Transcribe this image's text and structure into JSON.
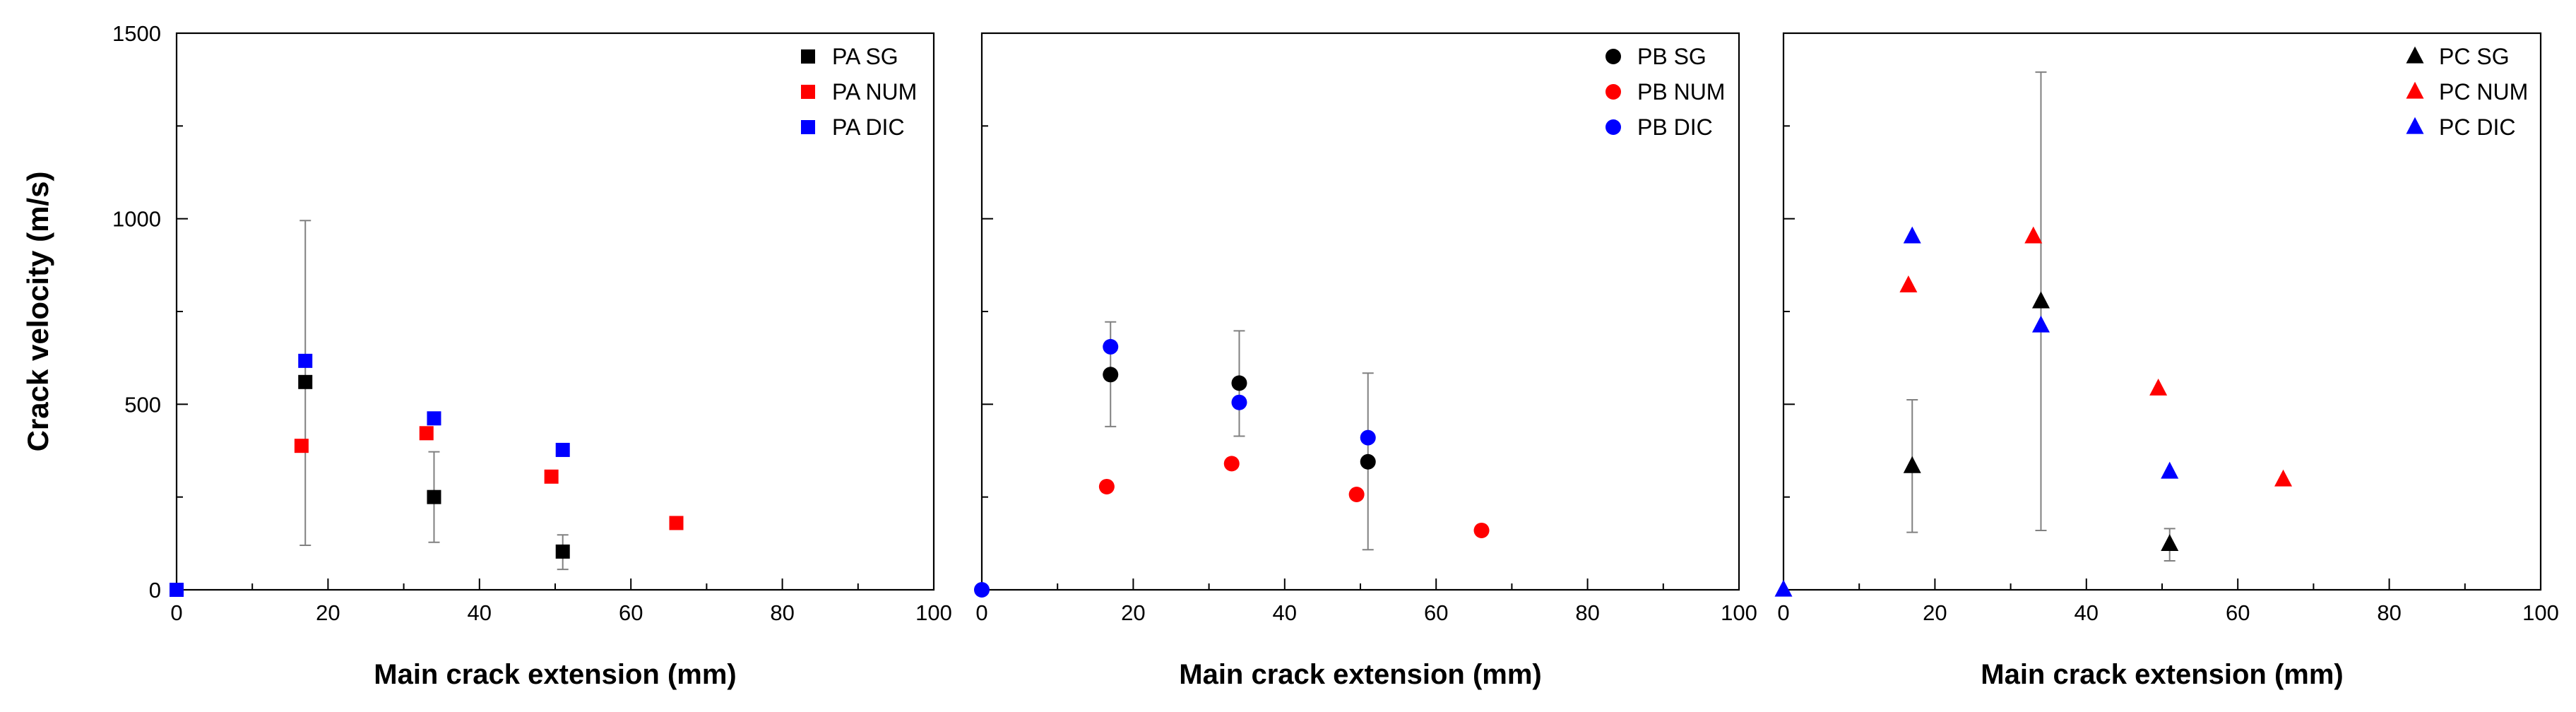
{
  "chart_data": [
    {
      "type": "scatter",
      "panel_id": "PA",
      "xlabel": "Main crack extension (mm)",
      "ylabel": "Crack velocity (m/s)",
      "xlim": [
        0,
        100
      ],
      "ylim": [
        0,
        1500
      ],
      "xticks": [
        0,
        20,
        40,
        60,
        80,
        100
      ],
      "yticks": [
        0,
        500,
        1000,
        1500
      ],
      "legend_position": "top-right",
      "series": [
        {
          "name": "PA SG",
          "marker": "square",
          "color": "#000000",
          "points": [
            {
              "x": 17,
              "y": 560,
              "err_low": 120,
              "err_high": 995
            },
            {
              "x": 34,
              "y": 250,
              "err_low": 128,
              "err_high": 372
            },
            {
              "x": 51,
              "y": 103,
              "err_low": 55,
              "err_high": 148
            }
          ]
        },
        {
          "name": "PA NUM",
          "marker": "square",
          "color": "#ff0000",
          "points": [
            {
              "x": 16.5,
              "y": 388
            },
            {
              "x": 33,
              "y": 422
            },
            {
              "x": 49.5,
              "y": 305
            },
            {
              "x": 66,
              "y": 180
            }
          ]
        },
        {
          "name": "PA DIC",
          "marker": "square",
          "color": "#0000ff",
          "points": [
            {
              "x": 0,
              "y": 0
            },
            {
              "x": 17,
              "y": 617
            },
            {
              "x": 34,
              "y": 462
            },
            {
              "x": 51,
              "y": 377
            }
          ]
        }
      ]
    },
    {
      "type": "scatter",
      "panel_id": "PB",
      "xlabel": "Main crack extension (mm)",
      "ylabel": "",
      "xlim": [
        0,
        100
      ],
      "ylim": [
        0,
        1500
      ],
      "xticks": [
        0,
        20,
        40,
        60,
        80,
        100
      ],
      "yticks": [
        0,
        500,
        1000,
        1500
      ],
      "legend_position": "top-right",
      "series": [
        {
          "name": "PB SG",
          "marker": "circle",
          "color": "#000000",
          "points": [
            {
              "x": 17,
              "y": 580,
              "err_low": 440,
              "err_high": 722
            },
            {
              "x": 34,
              "y": 557,
              "err_low": 414,
              "err_high": 698
            },
            {
              "x": 51,
              "y": 345,
              "err_low": 108,
              "err_high": 584
            }
          ]
        },
        {
          "name": "PB NUM",
          "marker": "circle",
          "color": "#ff0000",
          "points": [
            {
              "x": 16.5,
              "y": 278
            },
            {
              "x": 33,
              "y": 340
            },
            {
              "x": 49.5,
              "y": 257
            },
            {
              "x": 66,
              "y": 160
            }
          ]
        },
        {
          "name": "PB DIC",
          "marker": "circle",
          "color": "#0000ff",
          "points": [
            {
              "x": 0,
              "y": 0
            },
            {
              "x": 17,
              "y": 655
            },
            {
              "x": 34,
              "y": 505
            },
            {
              "x": 51,
              "y": 410
            }
          ]
        }
      ]
    },
    {
      "type": "scatter",
      "panel_id": "PC",
      "xlabel": "Main crack extension (mm)",
      "ylabel": "",
      "xlim": [
        0,
        100
      ],
      "ylim": [
        0,
        1500
      ],
      "xticks": [
        0,
        20,
        40,
        60,
        80,
        100
      ],
      "yticks": [
        0,
        500,
        1000,
        1500
      ],
      "legend_position": "top-right",
      "series": [
        {
          "name": "PC SG",
          "marker": "triangle",
          "color": "#000000",
          "points": [
            {
              "x": 17,
              "y": 333,
              "err_low": 155,
              "err_high": 512
            },
            {
              "x": 34,
              "y": 777,
              "err_low": 160,
              "err_high": 1395
            },
            {
              "x": 51,
              "y": 123,
              "err_low": 78,
              "err_high": 165
            }
          ]
        },
        {
          "name": "PC NUM",
          "marker": "triangle",
          "color": "#ff0000",
          "points": [
            {
              "x": 16.5,
              "y": 820
            },
            {
              "x": 33,
              "y": 952
            },
            {
              "x": 49.5,
              "y": 542
            },
            {
              "x": 66,
              "y": 297
            }
          ]
        },
        {
          "name": "PC DIC",
          "marker": "triangle",
          "color": "#0000ff",
          "points": [
            {
              "x": 0,
              "y": 0
            },
            {
              "x": 17,
              "y": 952
            },
            {
              "x": 34,
              "y": 712
            },
            {
              "x": 51,
              "y": 318
            }
          ]
        }
      ]
    }
  ]
}
